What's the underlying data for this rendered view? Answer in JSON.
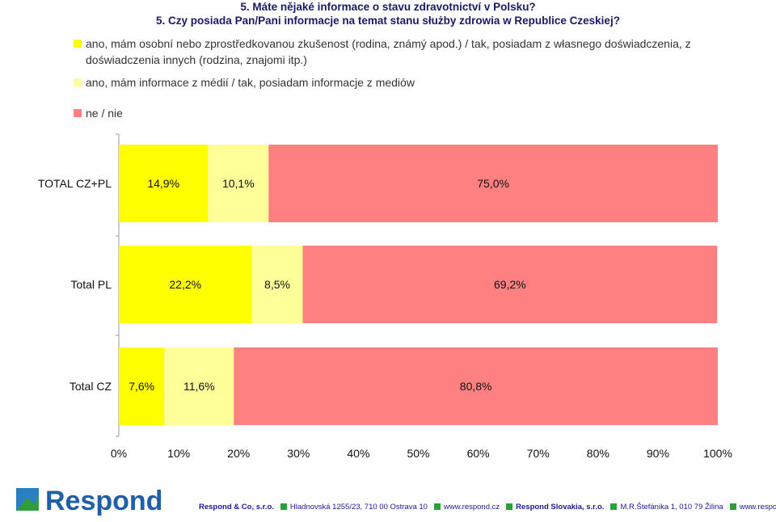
{
  "title": {
    "line1": "5. Máte nějaké informace o stavu zdravotnictví v Polsku?",
    "line2": "5. Czy posiada Pan/Pani informacje na temat stanu służby zdrowia w Republice Czeskiej?"
  },
  "colors": {
    "s1": "#ffff00",
    "s2": "#ffff99",
    "s3": "#ff8080"
  },
  "chart_data": {
    "type": "bar",
    "orientation": "horizontal",
    "stacked": true,
    "categories": [
      "TOTAL CZ+PL",
      "Total PL",
      "Total CZ"
    ],
    "series": [
      {
        "name": "ano, mám osobní nebo zprostředkovanou zkušenost (rodina, známý apod.) / tak, posiadam z własnego doświadczenia, z doświadczenia innych (rodzina, znajomi itp.)",
        "values": [
          14.9,
          22.2,
          7.6
        ],
        "labels": [
          "14,9%",
          "22,2%",
          "7,6%"
        ]
      },
      {
        "name": "ano, mám informace z médií / tak, posiadam informacje z mediów",
        "values": [
          10.1,
          8.5,
          11.6
        ],
        "labels": [
          "10,1%",
          "8,5%",
          "11,6%"
        ]
      },
      {
        "name": "ne / nie",
        "values": [
          75.0,
          69.2,
          80.8
        ],
        "labels": [
          "75,0%",
          "69,2%",
          "80,8%"
        ]
      }
    ],
    "xlim": [
      0,
      100
    ],
    "xticks": [
      "0%",
      "10%",
      "20%",
      "30%",
      "40%",
      "50%",
      "60%",
      "70%",
      "80%",
      "90%",
      "100%"
    ],
    "legend_position": "top",
    "grid": false
  },
  "footer": {
    "logo_text": "Respond",
    "company1": "Respond & Co, s.r.o.",
    "address1": "Hladnovská 1255/23, 710 00  Ostrava 10",
    "web1": "www.respond.cz",
    "company2": "Respond Slovakia, s.r.o.",
    "address2": "M.R.Štefánika 1, 010 79  Žilina",
    "web2": "www.respond.sk"
  }
}
